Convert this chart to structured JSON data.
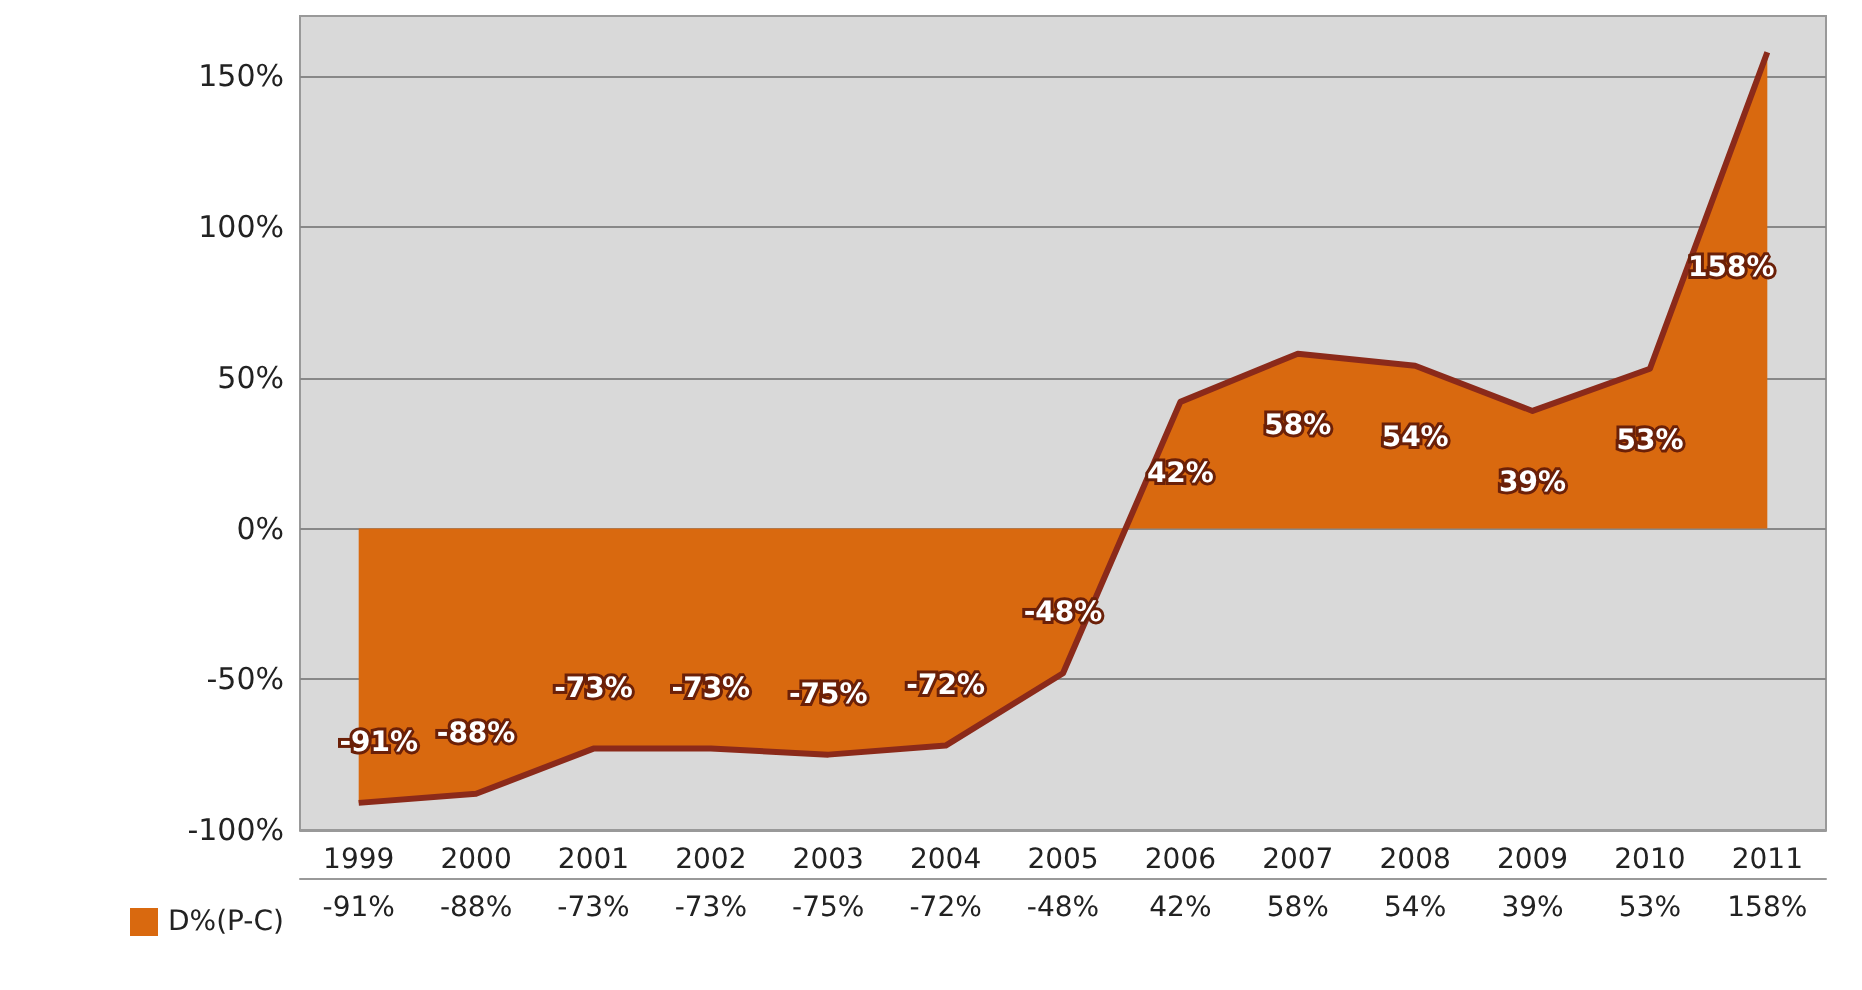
{
  "chart_data": {
    "type": "area",
    "categories": [
      "1999",
      "2000",
      "2001",
      "2002",
      "2003",
      "2004",
      "2005",
      "2006",
      "2007",
      "2008",
      "2009",
      "2010",
      "2011"
    ],
    "series": [
      {
        "name": "D%(P-C)",
        "color": "#d9690f",
        "values": [
          -91,
          -88,
          -73,
          -73,
          -75,
          -72,
          -48,
          42,
          58,
          54,
          39,
          53,
          158
        ],
        "value_labels": [
          "-91%",
          "-88%",
          "-73%",
          "-73%",
          "-75%",
          "-72%",
          "-48%",
          "42%",
          "58%",
          "54%",
          "39%",
          "53%",
          "158%"
        ]
      }
    ],
    "ylim": [
      -100,
      170
    ],
    "yticks": [
      {
        "value": -100,
        "label": "-100%"
      },
      {
        "value": -50,
        "label": "-50%"
      },
      {
        "value": 0,
        "label": "0%"
      },
      {
        "value": 50,
        "label": "50%"
      },
      {
        "value": 100,
        "label": "100%"
      },
      {
        "value": 150,
        "label": "150%"
      }
    ],
    "grid": "y",
    "legend": "bottom left"
  }
}
